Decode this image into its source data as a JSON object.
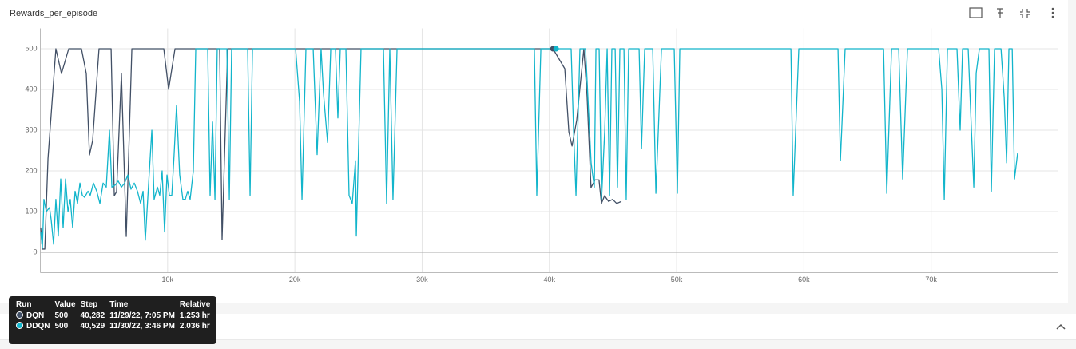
{
  "chart_data": {
    "type": "line",
    "title": "Rewards_per_episode",
    "xlim": [
      0,
      80000
    ],
    "ylim": [
      -50,
      550
    ],
    "xticks": [
      {
        "value": 10000,
        "label": "10k"
      },
      {
        "value": 20000,
        "label": "20k"
      },
      {
        "value": 30000,
        "label": "30k"
      },
      {
        "value": 40000,
        "label": "40k"
      },
      {
        "value": 50000,
        "label": "50k"
      },
      {
        "value": 60000,
        "label": "60k"
      },
      {
        "value": 70000,
        "label": "70k"
      }
    ],
    "yticks": [
      0,
      100,
      200,
      300,
      400,
      500
    ],
    "grid": true,
    "series": [
      {
        "name": "DQN",
        "color": "#425066",
        "x": [
          30,
          160,
          350,
          600,
          1220,
          1660,
          2230,
          3230,
          3610,
          3860,
          4110,
          4610,
          5560,
          5810,
          5990,
          6370,
          6750,
          7190,
          9700,
          10080,
          10580,
          14090,
          14280,
          14720,
          40282,
          41210,
          41530,
          41780,
          42150,
          42710,
          42960,
          43270,
          43590,
          43900,
          44090,
          44340,
          44650,
          44970,
          45290,
          45660
        ],
        "values": [
          61,
          8,
          8,
          230,
          500,
          439,
          500,
          500,
          439,
          239,
          275,
          500,
          500,
          139,
          149,
          439,
          39,
          500,
          500,
          400,
          500,
          500,
          31,
          500,
          500,
          451,
          296,
          261,
          325,
          500,
          384,
          159,
          178,
          178,
          120,
          139,
          125,
          130,
          120,
          125
        ]
      },
      {
        "name": "DDQN",
        "color": "#12b5cb",
        "x": [
          30,
          160,
          280,
          470,
          720,
          850,
          1040,
          1220,
          1410,
          1600,
          1790,
          1980,
          2170,
          2350,
          2540,
          2730,
          2920,
          3110,
          3300,
          3480,
          3740,
          3920,
          4170,
          4430,
          4680,
          4930,
          5180,
          5430,
          5620,
          5870,
          6120,
          6370,
          6620,
          6870,
          7120,
          7380,
          7630,
          7880,
          8070,
          8250,
          8510,
          8760,
          8940,
          9200,
          9380,
          9570,
          9760,
          9950,
          10140,
          10330,
          10510,
          10700,
          10950,
          11200,
          11390,
          11580,
          11770,
          12020,
          12210,
          13150,
          13340,
          13530,
          13720,
          13900,
          14660,
          14850,
          15030,
          16290,
          16480,
          16670,
          20060,
          20370,
          20560,
          20870,
          21440,
          21750,
          22060,
          22250,
          22570,
          22820,
          23190,
          23380,
          23570,
          24010,
          24260,
          24510,
          24760,
          24830,
          25200,
          26960,
          27210,
          27460,
          27710,
          28030,
          38820,
          39010,
          39330,
          40529,
          41710,
          41900,
          42090,
          42400,
          42840,
          43280,
          43530,
          43660,
          43910,
          44100,
          44350,
          44540,
          44730,
          44910,
          45170,
          45350,
          45540,
          45860,
          46040,
          46230,
          47050,
          47240,
          47490,
          48120,
          48370,
          48810,
          49810,
          50060,
          50250,
          58980,
          59160,
          59600,
          62680,
          62870,
          63240,
          66260,
          66510,
          66890,
          67450,
          67760,
          68140,
          70590,
          70840,
          71030,
          71280,
          72030,
          72280,
          72470,
          72910,
          73100,
          73350,
          73540,
          73790,
          74540,
          74730,
          74980,
          75490,
          75740,
          75930,
          76110,
          76370,
          76550,
          76800
        ],
        "values": [
          50,
          10,
          130,
          100,
          110,
          80,
          20,
          130,
          40,
          180,
          60,
          180,
          100,
          130,
          60,
          150,
          120,
          170,
          140,
          135,
          150,
          140,
          170,
          150,
          120,
          170,
          160,
          300,
          160,
          165,
          175,
          160,
          170,
          190,
          155,
          170,
          150,
          120,
          150,
          30,
          170,
          300,
          130,
          160,
          140,
          200,
          50,
          190,
          140,
          140,
          240,
          360,
          190,
          130,
          130,
          150,
          130,
          200,
          500,
          500,
          140,
          320,
          130,
          500,
          500,
          130,
          500,
          500,
          140,
          500,
          500,
          370,
          130,
          500,
          500,
          240,
          500,
          390,
          270,
          500,
          500,
          330,
          500,
          500,
          140,
          120,
          225,
          40,
          500,
          500,
          120,
          500,
          130,
          500,
          500,
          140,
          500,
          500,
          500,
          300,
          140,
          500,
          500,
          220,
          160,
          500,
          500,
          130,
          300,
          500,
          140,
          500,
          500,
          160,
          500,
          500,
          130,
          500,
          500,
          255,
          500,
          500,
          145,
          500,
          500,
          145,
          500,
          500,
          140,
          500,
          500,
          225,
          500,
          500,
          145,
          500,
          500,
          180,
          500,
          500,
          400,
          130,
          500,
          500,
          300,
          500,
          500,
          350,
          160,
          440,
          500,
          500,
          150,
          500,
          500,
          380,
          220,
          500,
          500,
          180,
          245
        ]
      }
    ]
  },
  "tooltip": {
    "columns": [
      "Run",
      "Value",
      "Step",
      "Time",
      "Relative"
    ],
    "rows": [
      [
        "DQN",
        "500",
        "40,282",
        "11/29/22, 7:05 PM",
        "1.253 hr"
      ],
      [
        "DDQN",
        "500",
        "40,529",
        "11/30/22, 3:46 PM",
        "2.036 hr"
      ]
    ]
  }
}
